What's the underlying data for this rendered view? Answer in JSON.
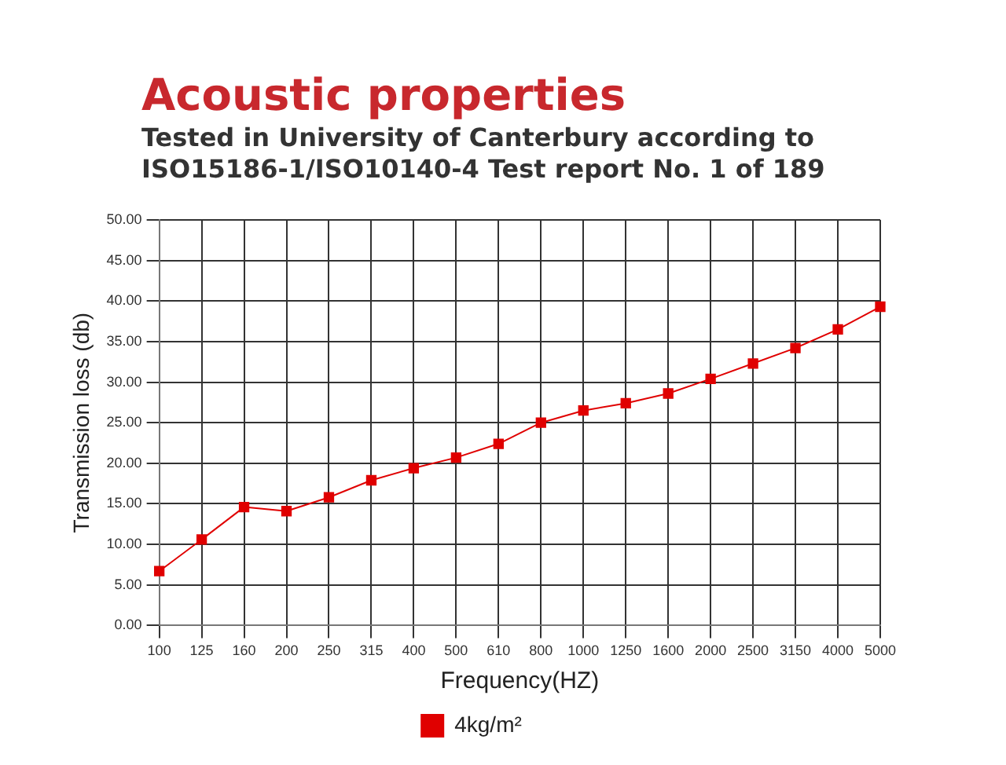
{
  "chart_data": {
    "type": "line",
    "title": "Acoustic properties",
    "subtitle": "Tested in University of Canterbury according to ISO15186-1/ISO10140-4 Test report No. 1 of 189",
    "xlabel": "Frequency(HZ)",
    "ylabel": "Transmission loss (db)",
    "categories": [
      "100",
      "125",
      "160",
      "200",
      "250",
      "315",
      "400",
      "500",
      "610",
      "800",
      "1000",
      "1250",
      "1600",
      "2000",
      "2500",
      "3150",
      "4000",
      "5000"
    ],
    "series": [
      {
        "name": "4kg/m²",
        "color": "#e00000",
        "values": [
          6.7,
          10.6,
          14.6,
          14.1,
          15.8,
          17.9,
          19.4,
          20.7,
          22.4,
          25.0,
          26.5,
          27.4,
          28.6,
          30.4,
          32.3,
          34.2,
          36.5,
          39.3
        ]
      }
    ],
    "ylim": [
      0,
      50
    ],
    "yticks": [
      {
        "value": 0,
        "label": "0.00"
      },
      {
        "value": 5,
        "label": "5.00"
      },
      {
        "value": 10,
        "label": "10.00"
      },
      {
        "value": 15,
        "label": "15.00"
      },
      {
        "value": 20,
        "label": "20.00"
      },
      {
        "value": 25,
        "label": "25.00"
      },
      {
        "value": 30,
        "label": "30.00"
      },
      {
        "value": 35,
        "label": "35.00"
      },
      {
        "value": 40,
        "label": "40.00"
      },
      {
        "value": 45,
        "label": "45.00"
      },
      {
        "value": 50,
        "label": "50.00"
      }
    ],
    "grid": true,
    "legend": "bottom",
    "marker": "square",
    "line_style": "solid"
  }
}
